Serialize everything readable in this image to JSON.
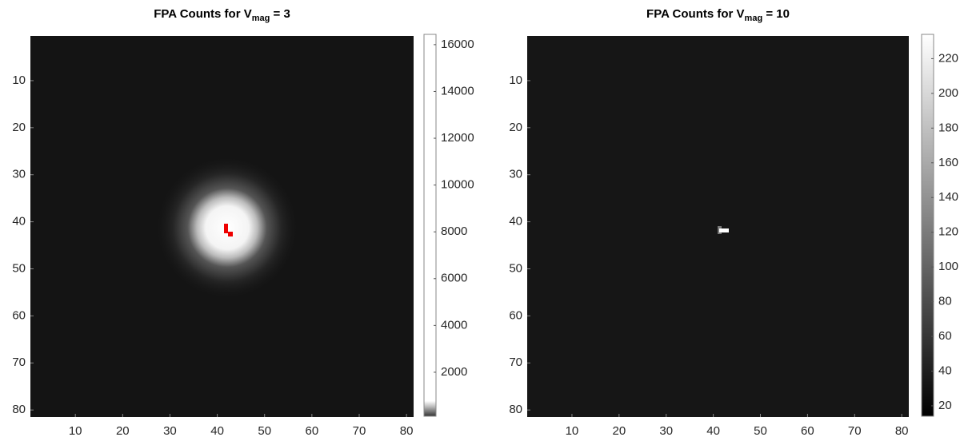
{
  "chart_data": [
    {
      "type": "image",
      "title": {
        "text": "FPA Counts for V",
        "subscript": "mag",
        "suffix": " = 3"
      },
      "xlim": [
        0.5,
        81.5
      ],
      "ylim": [
        0.5,
        81.5
      ],
      "y_reversed": true,
      "xticks": [
        10,
        20,
        30,
        40,
        50,
        60,
        70,
        80
      ],
      "yticks": [
        10,
        20,
        30,
        40,
        50,
        60,
        70,
        80
      ],
      "colormap": "gray",
      "colorbar": {
        "clim": [
          120,
          16440
        ],
        "ticks": [
          2000,
          4000,
          6000,
          8000,
          10000,
          12000,
          14000,
          16000
        ]
      }
    },
    {
      "type": "image",
      "title": {
        "text": "FPA Counts for V",
        "subscript": "mag",
        "suffix": " = 10"
      },
      "xlim": [
        0.5,
        81.5
      ],
      "ylim": [
        0.5,
        81.5
      ],
      "y_reversed": true,
      "xticks": [
        10,
        20,
        30,
        40,
        50,
        60,
        70,
        80
      ],
      "yticks": [
        10,
        20,
        30,
        40,
        50,
        60,
        70,
        80
      ],
      "colormap": "gray",
      "colorbar": {
        "clim": [
          14,
          234
        ],
        "ticks": [
          20,
          40,
          60,
          80,
          100,
          120,
          140,
          160,
          180,
          200,
          220
        ]
      }
    }
  ]
}
